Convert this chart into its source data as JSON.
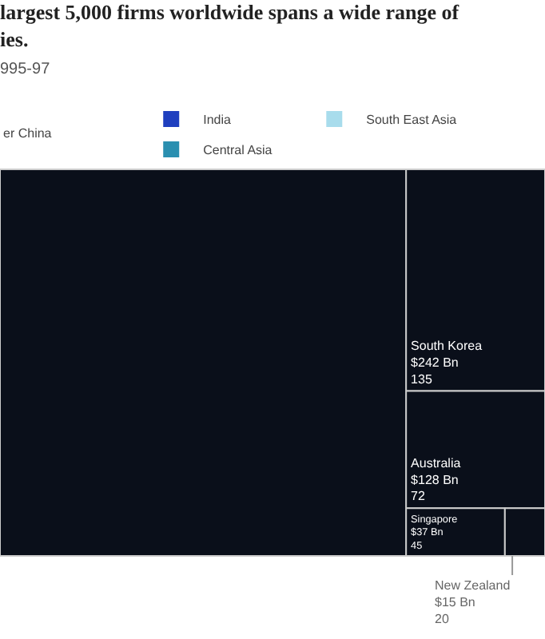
{
  "chart_data": {
    "type": "other",
    "title": "largest 5,000 firms worldwide spans a wide range of\nies.",
    "subtitle": "995-97",
    "categories": [
      null,
      "South Korea",
      "Australia",
      "Singapore",
      "New Zealand"
    ],
    "values": [
      null,
      242,
      128,
      37,
      15
    ],
    "value_labels": [
      null,
      "$242 Bn\n135",
      "$128 Bn\n72",
      "$37 Bn\n45",
      "$15 Bn\n20"
    ],
    "colors": [
      "#0a0f1a",
      "#0a0f1a",
      "#0a0f1a",
      "#0a0f1a",
      "#0a0f1a"
    ],
    "series": [
      {
        "name": "India",
        "color": "#1f3fbf",
        "values": [
          null,
          null,
          null,
          null,
          null
        ]
      },
      {
        "name": "South East Asia",
        "color": "#a8dcec",
        "values": [
          null,
          null,
          null,
          null,
          null
        ]
      },
      {
        "name": "Central Asia",
        "color": "#2a8fb0",
        "values": [
          null,
          null,
          null,
          null,
          null
        ]
      }
    ],
    "annotations": [
      "er China"
    ],
    "legend": "top"
  }
}
